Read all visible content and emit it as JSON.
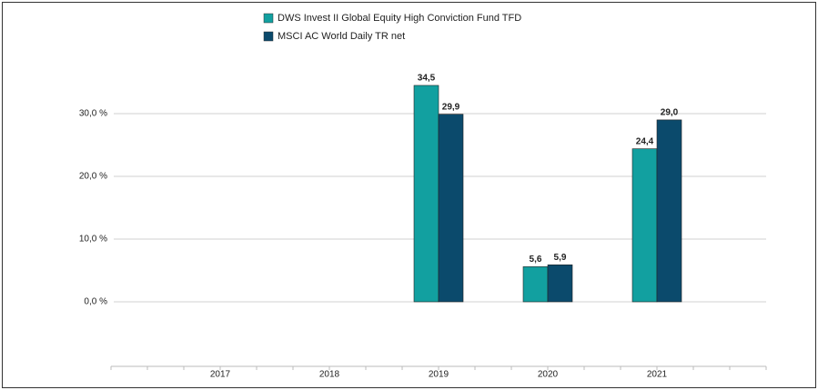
{
  "chart_data": {
    "type": "bar",
    "categories": [
      "2017",
      "2018",
      "2019",
      "2020",
      "2021"
    ],
    "series": [
      {
        "name": "DWS Invest II Global Equity High Conviction Fund  TFD",
        "color": "#12a0a0",
        "values": [
          null,
          null,
          34.5,
          5.6,
          24.4
        ],
        "value_labels": [
          null,
          null,
          "34,5",
          "5,6",
          "24,4"
        ]
      },
      {
        "name": "MSCI AC World Daily TR net",
        "color": "#0b4a6c",
        "values": [
          null,
          null,
          29.9,
          5.9,
          29.0
        ],
        "value_labels": [
          null,
          null,
          "29,9",
          "5,9",
          "29,0"
        ]
      }
    ],
    "ylim": [
      -10,
      40
    ],
    "yticks": [
      {
        "value": 0,
        "label": "0,0 %"
      },
      {
        "value": 10,
        "label": "10,0 %"
      },
      {
        "value": 20,
        "label": "20,0 %"
      },
      {
        "value": 30,
        "label": "30,0 %"
      }
    ],
    "grid": true
  }
}
